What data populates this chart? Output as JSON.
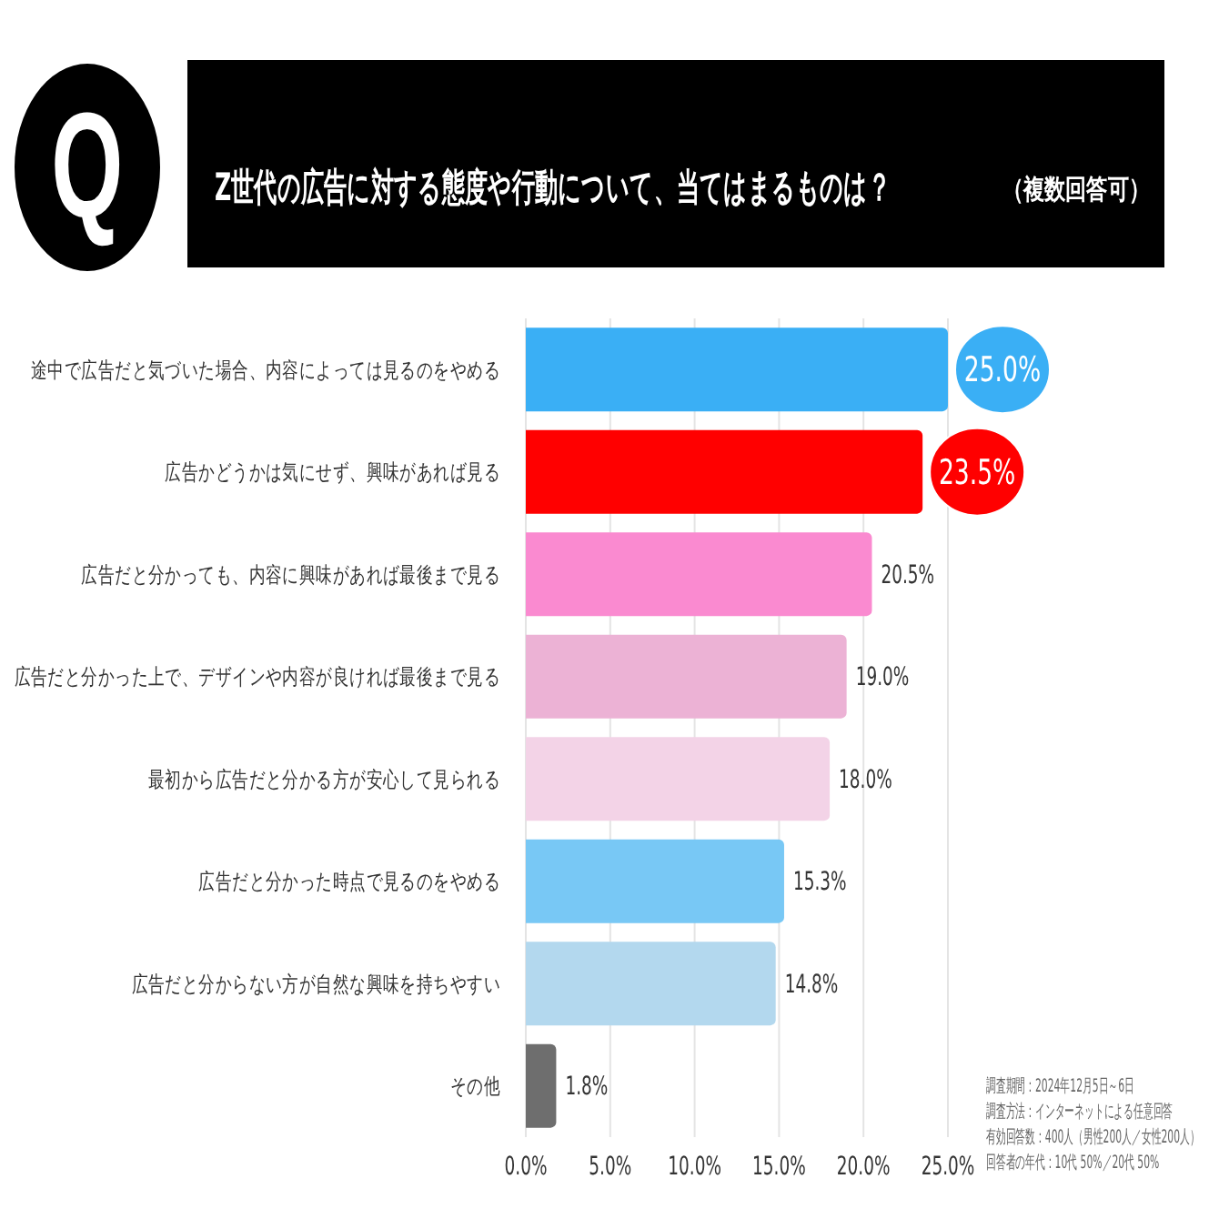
{
  "chart_data": {
    "type": "bar",
    "orientation": "horizontal",
    "title": "Z世代の広告に対する態度や行動について、当てはまるものは？",
    "subtitle": "（複数回答可）",
    "categories": [
      "途中で広告だと気づいた場合、内容によっては見るのをやめる",
      "広告かどうかは気にせず、興味があれば見る",
      "広告だと分かっても、内容に興味があれば最後まで見る",
      "広告だと分かった上で、デザインや内容が良ければ最後まで見る",
      "最初から広告だと分かる方が安心して見られる",
      "広告だと分かった時点で見るのをやめる",
      "広告だと分からない方が自然な興味を持ちやすい",
      "その他"
    ],
    "values": [
      25.0,
      23.5,
      20.5,
      19.0,
      18.0,
      15.3,
      14.8,
      1.8
    ],
    "colors": [
      "#3aaff5",
      "#ff0000",
      "#fa8ad0",
      "#ecb2d5",
      "#f3d3e7",
      "#78c8f5",
      "#b3d8ee",
      "#6e6e6e"
    ],
    "value_labels": [
      "25.0%",
      "23.5%",
      "20.5%",
      "19.0%",
      "18.0%",
      "15.3%",
      "14.8%",
      "1.8%"
    ],
    "xlim": [
      0,
      25
    ],
    "xticks": [
      {
        "value": 0,
        "label": "0.0%"
      },
      {
        "value": 5,
        "label": "5.0%"
      },
      {
        "value": 10,
        "label": "10.0%"
      },
      {
        "value": 15,
        "label": "15.0%"
      },
      {
        "value": 20,
        "label": "20.0%"
      },
      {
        "value": 25,
        "label": "25.0%"
      }
    ],
    "grid": "x",
    "annotations": [
      "Q",
      "調査期間：2024年12月5日～6日",
      "調査方法：インターネットによる任意回答",
      "有効回答数：400人（男性200人／女性200人）",
      "回答者の年代：10代 50%／20代 50%"
    ]
  }
}
